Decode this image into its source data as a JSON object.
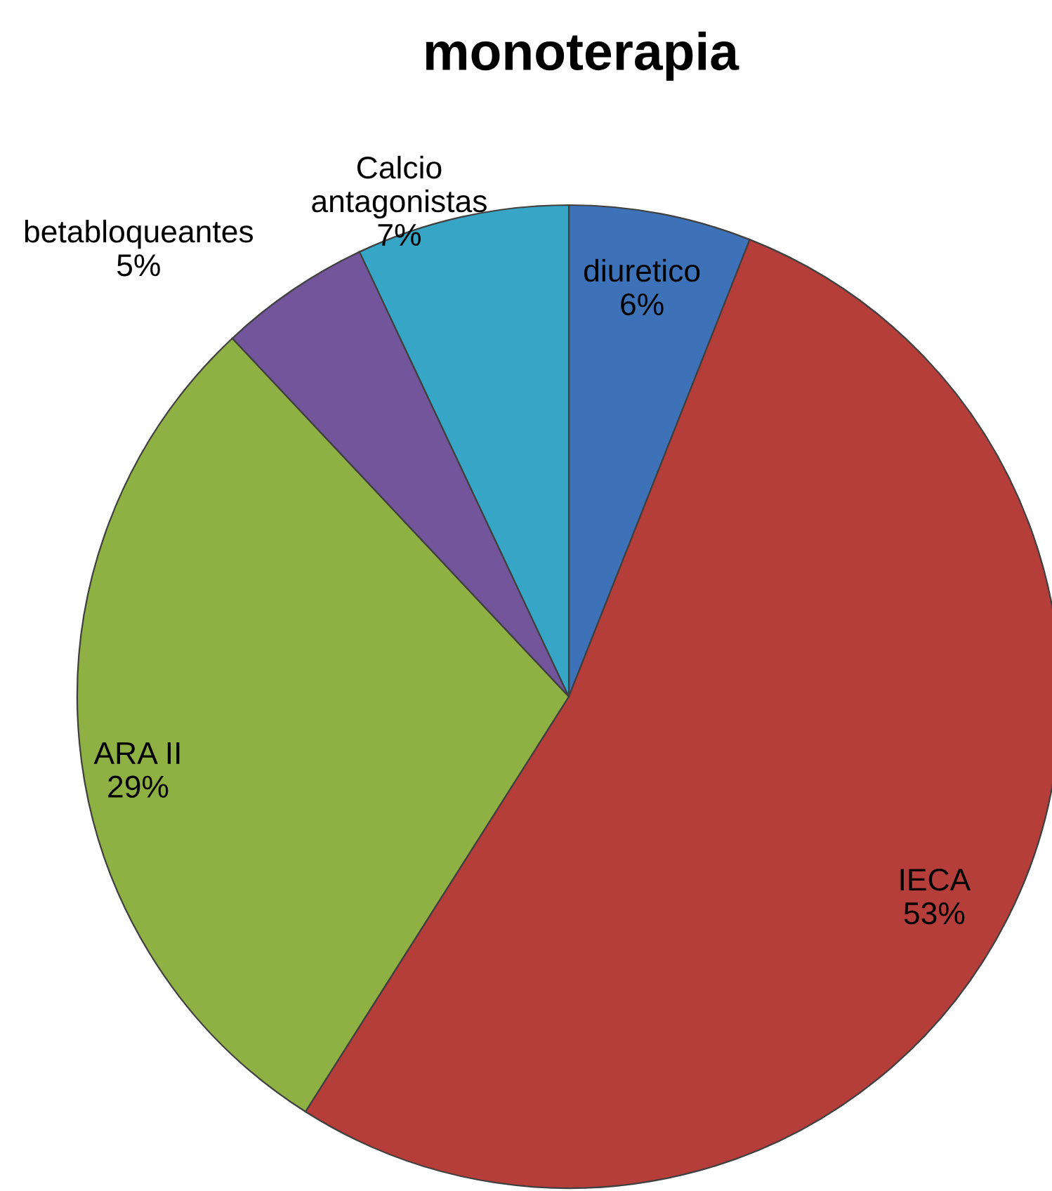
{
  "chart_data": {
    "type": "pie",
    "title": "monoterapia",
    "categories": [
      "diuretico",
      "IECA",
      "ARA II",
      "betabloqueantes",
      "Calcio antagonistas"
    ],
    "values": [
      6,
      53,
      29,
      5,
      7
    ],
    "value_labels": [
      "6%",
      "53%",
      "29%",
      "5%",
      "7%"
    ],
    "colors": [
      "#3d72b8",
      "#b53d3a",
      "#8fb042",
      "#72559a",
      "#37a6c6"
    ],
    "legend": false
  }
}
